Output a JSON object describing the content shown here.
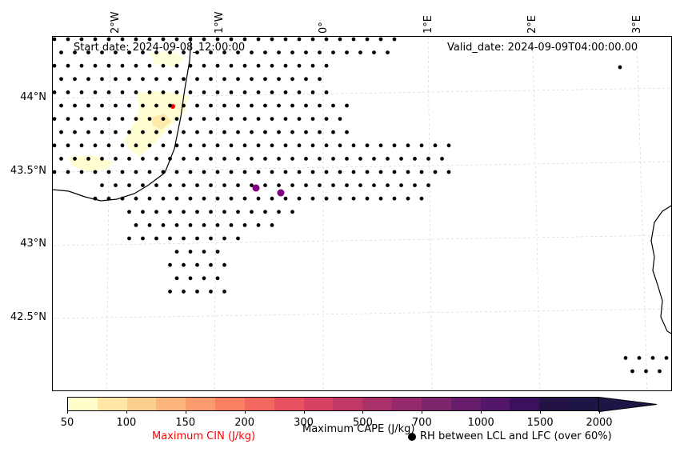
{
  "dates": {
    "start": "Start date: 2024-09-08_12:00:00",
    "valid": "Valid_date: 2024-09-09T04:00:00.00"
  },
  "longitude_labels": [
    "2°W",
    "1°W",
    "0°",
    "1°E",
    "2°E",
    "3°E"
  ],
  "latitude_labels": [
    "44°N",
    "43.5°N",
    "43°N",
    "42.5°N"
  ],
  "colorbar": {
    "title": "Maximum CAPE (J/kg)",
    "ticks": [
      "50",
      "100",
      "150",
      "200",
      "300",
      "500",
      "700",
      "1000",
      "1500",
      "2000"
    ],
    "colors": [
      "#fffecb",
      "#fee7a7",
      "#fdcf8d",
      "#fcb57b",
      "#fb9b6d",
      "#f98063",
      "#f3685e",
      "#e8515f",
      "#d74163",
      "#c13867",
      "#aa3069",
      "#942a6b",
      "#7e246c",
      "#671d6b",
      "#521768",
      "#3b105c",
      "#251244",
      "#1c1646"
    ],
    "extend": "max"
  },
  "legend": {
    "cin": "Maximum CIN (J/kg)",
    "cin_color": "#ff0000",
    "rh": "RH between LCL and LFC (over 60%)"
  },
  "map": {
    "cape_marker_color": "#800080",
    "rh_marker_color": "#000000",
    "cin_color": "#ff0000",
    "coast_color": "#000000",
    "grid": "dashed light gray"
  }
}
